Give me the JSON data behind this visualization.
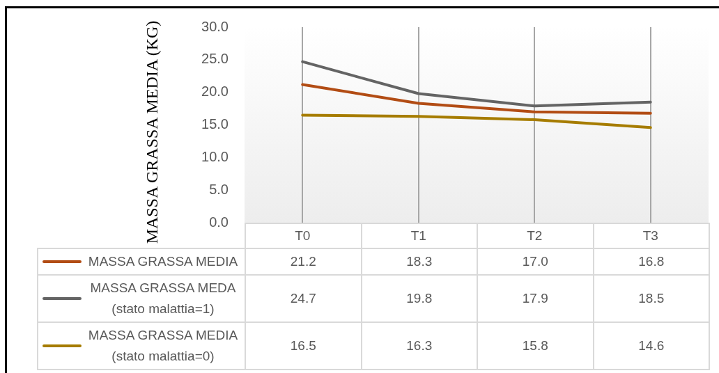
{
  "chart_data": {
    "type": "line",
    "ylabel": "MASSA GRASSA MEDIA (KG)",
    "categories": [
      "T0",
      "T1",
      "T2",
      "T3"
    ],
    "series": [
      {
        "name": "MASSA GRASSA MEDIA",
        "color": "#b24c14",
        "values": [
          21.2,
          18.3,
          17.0,
          16.8
        ],
        "value_labels": [
          "21.2",
          "18.3",
          "17.0",
          "16.8"
        ]
      },
      {
        "name": "MASSA GRASSA MEDA (stato malattia=1)",
        "color": "#646464",
        "values": [
          24.7,
          19.8,
          17.9,
          18.5
        ],
        "value_labels": [
          "24.7",
          "19.8",
          "17.9",
          "18.5"
        ]
      },
      {
        "name": "MASSA GRASSA MEDIA (stato malattia=0)",
        "color": "#a67c00",
        "values": [
          16.5,
          16.3,
          15.8,
          14.6
        ],
        "value_labels": [
          "16.5",
          "16.3",
          "15.8",
          "14.6"
        ]
      }
    ],
    "ylim": [
      0,
      30
    ],
    "yticks": [
      {
        "value": 0,
        "label": "0.0"
      },
      {
        "value": 5,
        "label": "5.0"
      },
      {
        "value": 10,
        "label": "10.0"
      },
      {
        "value": 15,
        "label": "15.0"
      },
      {
        "value": 20,
        "label": "20.0"
      },
      {
        "value": 25,
        "label": "25.0"
      },
      {
        "value": 30,
        "label": "30.0"
      }
    ],
    "grid": "x",
    "legend": "bottom left",
    "marker": "none",
    "line_style": "solid"
  }
}
